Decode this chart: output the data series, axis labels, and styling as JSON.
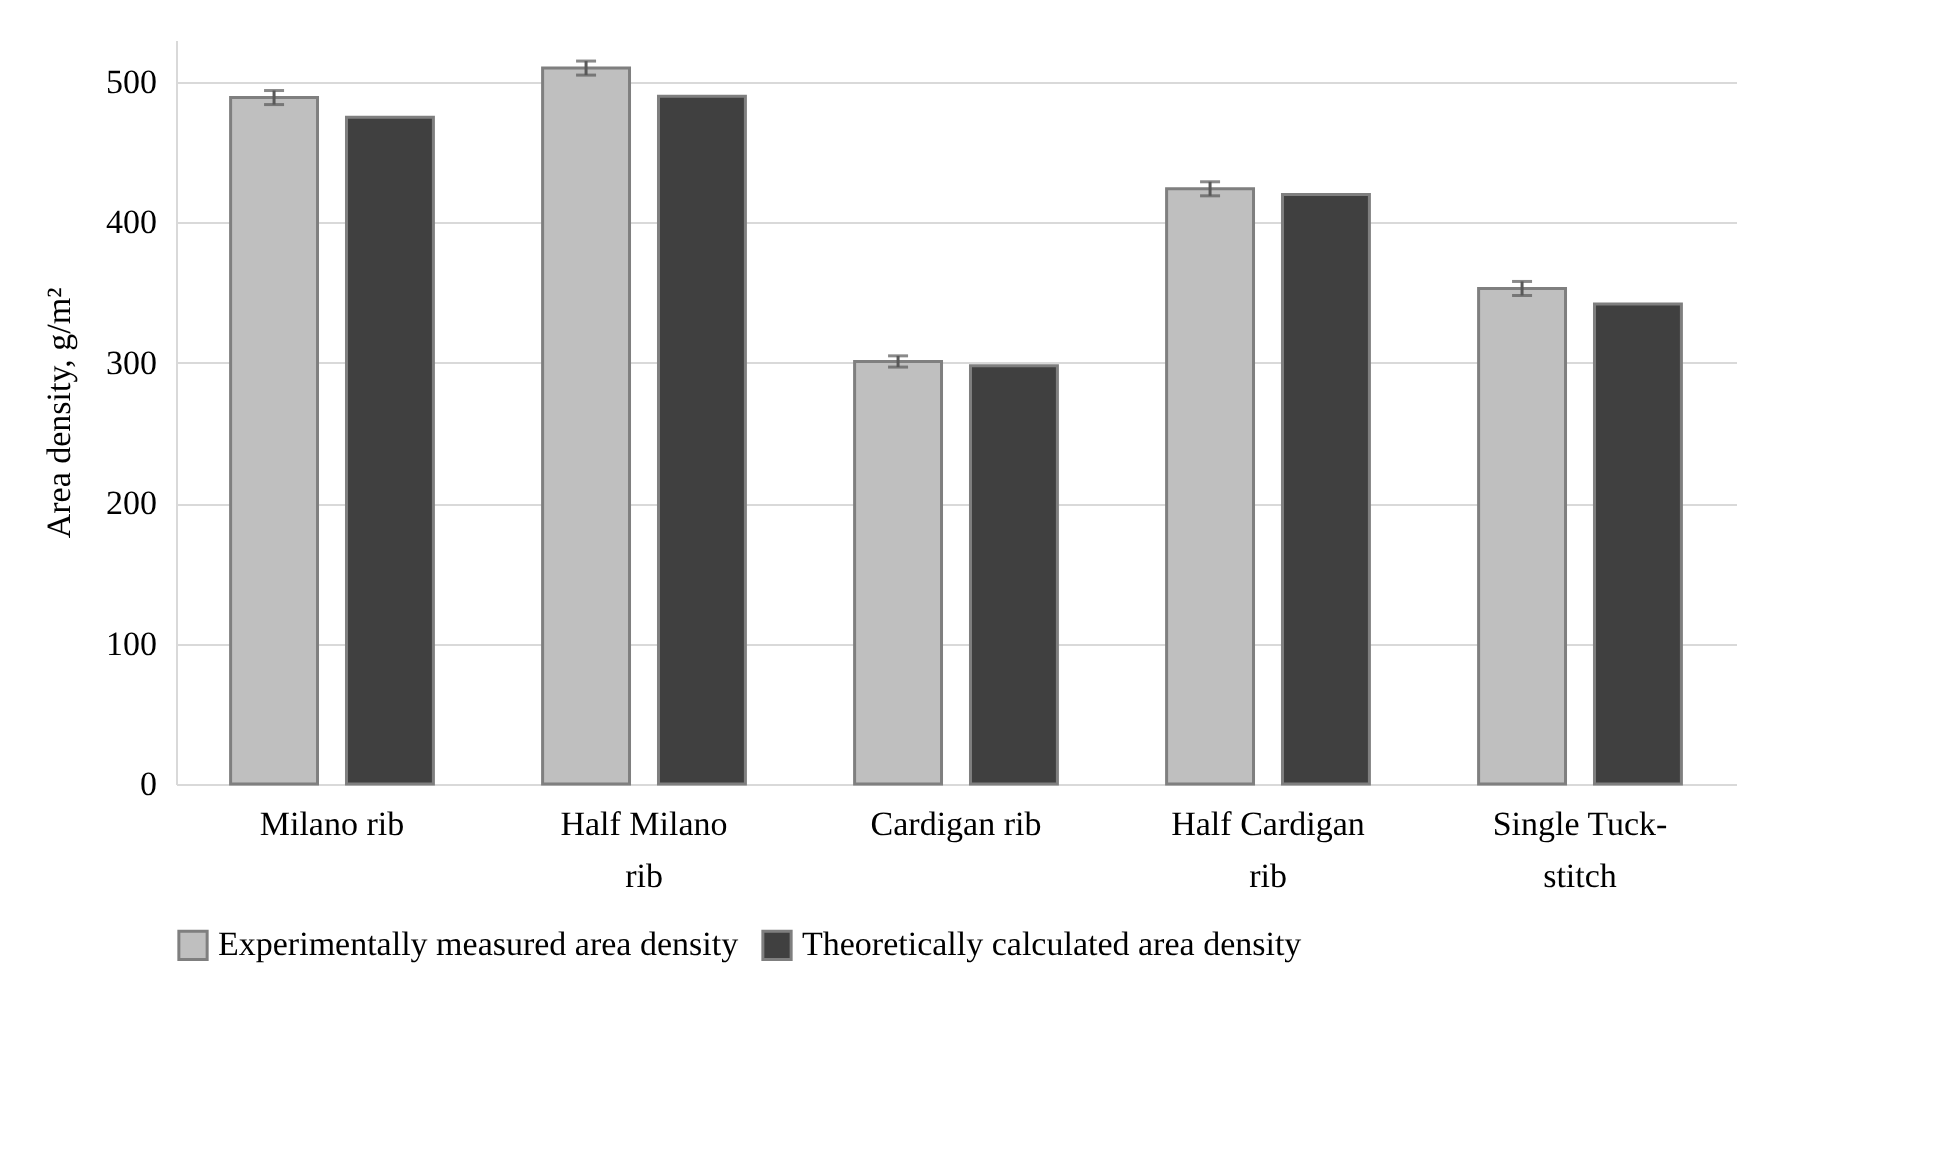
{
  "chart_data": {
    "type": "bar",
    "ylabel": "Area density, g/m²",
    "categories": [
      "Milano rib",
      "Half Milano rib",
      "Cardigan rib",
      "Half Cardigan rib",
      "Single Tuck-stitch"
    ],
    "series": [
      {
        "name": "Experimentally measured area density",
        "color": "#bfbfbf",
        "values": [
          489,
          510,
          301,
          424,
          353
        ],
        "errors": [
          5,
          5,
          4,
          5,
          5
        ]
      },
      {
        "name": "Theoretically calculated area density",
        "color": "#404040",
        "values": [
          475,
          490,
          298,
          420,
          342
        ]
      }
    ],
    "ylim": [
      0,
      530
    ],
    "yticks": [
      0,
      100,
      200,
      300,
      400,
      500
    ],
    "grid": "y",
    "legend": "bottom"
  }
}
